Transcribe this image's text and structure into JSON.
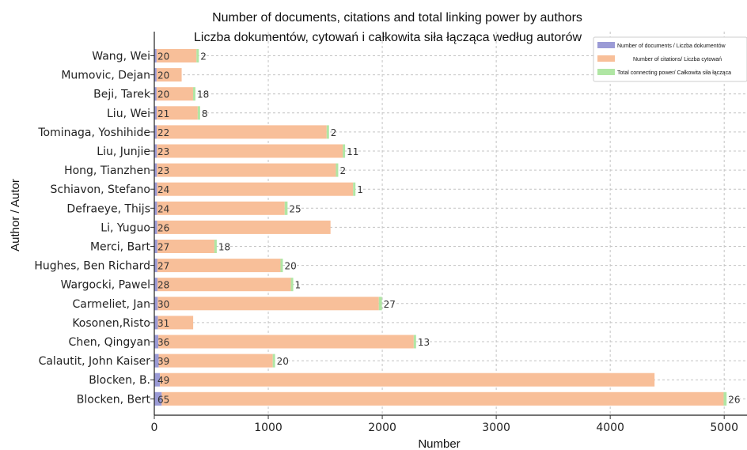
{
  "chart_data": {
    "type": "bar",
    "orientation": "horizontal",
    "stacked": true,
    "title": "Number of documents, citations and total linking power by authors",
    "subtitle": "Liczba dokumentów, cytowań i całkowita siła łącząca według autorów",
    "xlabel": "Number",
    "ylabel": "Author / Autor",
    "xlim": [
      0,
      5200
    ],
    "xticks": [
      0,
      1000,
      2000,
      3000,
      4000,
      5000
    ],
    "grid": true,
    "legend_position": "top-right",
    "categories": [
      "Wang, Wei",
      "Mumovic, Dejan",
      "Beji, Tarek",
      "Liu, Wei",
      "Tominaga, Yoshihide",
      "Liu, Junjie",
      "Hong, Tianzhen",
      "Schiavon, Stefano",
      "Defraeye, Thijs",
      "Li, Yuguo",
      "Merci, Bart",
      "Hughes, Ben Richard",
      "Wargocki, Pawel",
      "Carmeliet, Jan",
      "Kosonen,Risto",
      "Chen, Qingyan",
      "Calautit, John Kaiser",
      "Blocken, B.",
      "Blocken, Bert"
    ],
    "series": [
      {
        "name": "Number of documents / Liczba dokumentów",
        "color": "#9b9bd6",
        "values": [
          20,
          20,
          20,
          21,
          22,
          23,
          23,
          24,
          24,
          26,
          27,
          27,
          28,
          30,
          31,
          36,
          39,
          49,
          65
        ]
      },
      {
        "name": "Number of citations/ Liczba cytowań",
        "color": "#f8bf99",
        "values": [
          350,
          220,
          320,
          360,
          1490,
          1630,
          1570,
          1720,
          1120,
          1520,
          500,
          1080,
          1170,
          1940,
          310,
          2240,
          1000,
          4340,
          4930
        ]
      },
      {
        "name": "Total connecting power/ Całkowita siła łącząca",
        "color": "#b0e6a4",
        "values": [
          2,
          null,
          18,
          8,
          2,
          11,
          2,
          1,
          25,
          null,
          18,
          20,
          1,
          27,
          null,
          13,
          20,
          null,
          26
        ]
      }
    ],
    "document_labels": [
      "20",
      "20",
      "20",
      "21",
      "22",
      "23",
      "23",
      "24",
      "24",
      "26",
      "27",
      "27",
      "28",
      "30",
      "31",
      "36",
      "39",
      "49",
      "65"
    ],
    "linking_labels": [
      "2",
      "",
      "18",
      "8",
      "2",
      "11",
      "2",
      "1",
      "25",
      "",
      "18",
      "20",
      "1",
      "27",
      "",
      "13",
      "20",
      "",
      "26"
    ]
  }
}
